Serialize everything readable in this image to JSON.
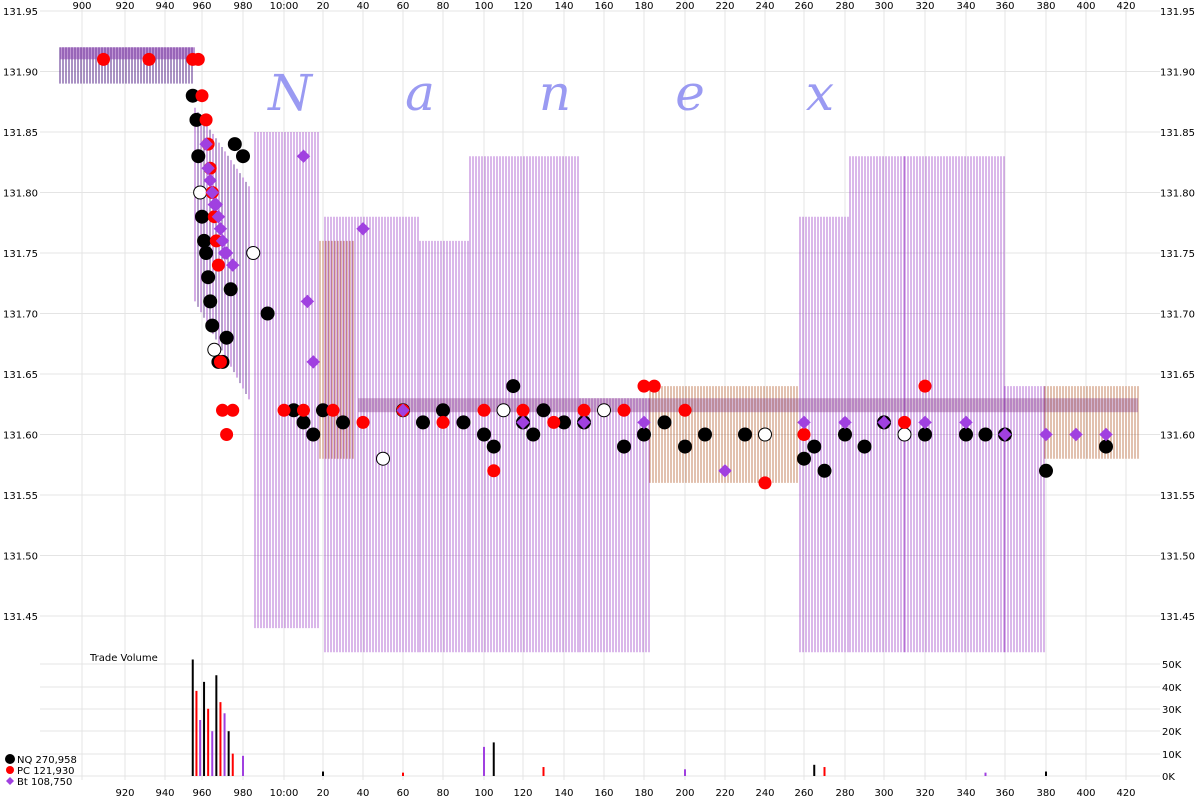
{
  "watermark": [
    "N",
    "a",
    "n",
    "e",
    "x"
  ],
  "colors": {
    "nq": "#000000",
    "pc": "#ff0000",
    "bt": "#a040e0",
    "grid": "#e4e4e4",
    "quote_purple": "#9d3fc8",
    "quote_dark": "#5a2a8a",
    "quote_brown": "#b45a2a"
  },
  "price_axis": {
    "labels": [
      "131.95",
      "131.90",
      "131.85",
      "131.80",
      "131.75",
      "131.70",
      "131.65",
      "131.60",
      "131.55",
      "131.50",
      "131.45"
    ]
  },
  "x_axis": {
    "top_labels": [
      "900",
      "920",
      "940",
      "960",
      "980",
      "10:00",
      "20",
      "40",
      "60",
      "80",
      "100",
      "120",
      "140",
      "160",
      "180",
      "200",
      "220",
      "240",
      "260",
      "280",
      "300",
      "320",
      "340",
      "360",
      "380",
      "400",
      "420"
    ],
    "bottom_labels": [
      "920",
      "940",
      "960",
      "980",
      "10:00",
      "20",
      "40",
      "60",
      "80",
      "100",
      "120",
      "140",
      "160",
      "180",
      "200",
      "220",
      "240",
      "260",
      "280",
      "300",
      "320",
      "340",
      "360",
      "380",
      "400",
      "420"
    ]
  },
  "volume": {
    "title": "Trade Volume",
    "labels": [
      "50K",
      "40K",
      "30K",
      "20K",
      "10K",
      "0K"
    ]
  },
  "legend": [
    {
      "label": "NQ 270,958",
      "color": "#000000"
    },
    {
      "label": "PC 121,930",
      "color": "#ff0000"
    },
    {
      "label": "Bt 108,750",
      "color": "#a040e0"
    }
  ],
  "chart_data": [
    {
      "type": "scatter",
      "title": "",
      "xlabel": "",
      "ylabel": "",
      "x_ticks": [
        "900",
        "920",
        "940",
        "960",
        "980",
        "10:00",
        "20",
        "40",
        "60",
        "80",
        "100",
        "120",
        "140",
        "160",
        "180",
        "200",
        "220",
        "240",
        "260",
        "280",
        "300",
        "320",
        "340",
        "360",
        "380",
        "400",
        "420"
      ],
      "ylim": [
        131.42,
        131.95
      ],
      "grid": true,
      "legend_position": "bottom-left",
      "series": [
        {
          "name": "NQ 270,958",
          "color": "#000000",
          "x": [
            955,
            957,
            958,
            959,
            960,
            961,
            962,
            963,
            964,
            965,
            966,
            968,
            970,
            972,
            974,
            976,
            980,
            985,
            992,
            1005,
            1010,
            1015,
            1020,
            1030,
            1050,
            1060,
            1070,
            1080,
            1090,
            1100,
            1105,
            1110,
            1115,
            1120,
            1125,
            1130,
            1140,
            1150,
            1160,
            1170,
            1180,
            1190,
            1200,
            1210,
            1230,
            1240,
            1260,
            1265,
            1270,
            1280,
            1290,
            1300,
            1310,
            1320,
            1340,
            1350,
            1360,
            1380,
            1410
          ],
          "y": [
            131.88,
            131.86,
            131.83,
            131.8,
            131.78,
            131.76,
            131.75,
            131.73,
            131.71,
            131.69,
            131.67,
            131.66,
            131.66,
            131.68,
            131.72,
            131.84,
            131.83,
            131.75,
            131.7,
            131.62,
            131.61,
            131.6,
            131.62,
            131.61,
            131.58,
            131.62,
            131.61,
            131.62,
            131.61,
            131.6,
            131.59,
            131.62,
            131.64,
            131.61,
            131.6,
            131.62,
            131.61,
            131.61,
            131.62,
            131.59,
            131.6,
            131.61,
            131.59,
            131.6,
            131.6,
            131.6,
            131.58,
            131.59,
            131.57,
            131.6,
            131.59,
            131.61,
            131.6,
            131.6,
            131.6,
            131.6,
            131.6,
            131.57,
            131.59
          ]
        },
        {
          "name": "PC 121,930",
          "color": "#ff0000",
          "x": [
            910,
            932,
            955,
            958,
            960,
            962,
            963,
            964,
            965,
            966,
            967,
            968,
            969,
            970,
            972,
            975,
            1000,
            1010,
            1025,
            1040,
            1060,
            1080,
            1100,
            1105,
            1120,
            1135,
            1150,
            1170,
            1180,
            1185,
            1200,
            1240,
            1260,
            1310,
            1320
          ],
          "y": [
            131.91,
            131.91,
            131.91,
            131.91,
            131.88,
            131.86,
            131.84,
            131.82,
            131.8,
            131.78,
            131.76,
            131.74,
            131.66,
            131.62,
            131.6,
            131.62,
            131.62,
            131.62,
            131.62,
            131.61,
            131.62,
            131.61,
            131.62,
            131.57,
            131.62,
            131.61,
            131.62,
            131.62,
            131.64,
            131.64,
            131.62,
            131.56,
            131.6,
            131.61,
            131.64
          ]
        },
        {
          "name": "Bt 108,750",
          "color": "#a040e0",
          "x": [
            962,
            963,
            964,
            965,
            966,
            967,
            968,
            969,
            970,
            971,
            972,
            975,
            1010,
            1012,
            1015,
            1040,
            1060,
            1120,
            1150,
            1180,
            1220,
            1260,
            1280,
            1300,
            1320,
            1340,
            1360,
            1380,
            1395,
            1410
          ],
          "y": [
            131.84,
            131.82,
            131.81,
            131.8,
            131.79,
            131.79,
            131.78,
            131.77,
            131.76,
            131.75,
            131.75,
            131.74,
            131.83,
            131.71,
            131.66,
            131.77,
            131.62,
            131.61,
            131.61,
            131.61,
            131.57,
            131.61,
            131.61,
            131.61,
            131.61,
            131.61,
            131.6,
            131.6,
            131.6,
            131.6
          ]
        }
      ]
    },
    {
      "type": "bar",
      "title": "Trade Volume",
      "ylabel": "",
      "ylim": [
        0,
        50000
      ],
      "y_ticks": [
        "50K",
        "40K",
        "30K",
        "20K",
        "10K",
        "0K"
      ],
      "x": [
        955,
        957,
        959,
        961,
        963,
        965,
        967,
        969,
        971,
        973,
        975,
        980,
        1020,
        1060,
        1100,
        1105,
        1130,
        1200,
        1265,
        1270,
        1350,
        1380
      ],
      "values": [
        52000,
        38000,
        25000,
        42000,
        30000,
        20000,
        45000,
        33000,
        28000,
        20000,
        10000,
        9000,
        2000,
        1500,
        13000,
        15000,
        4000,
        3000,
        5000,
        4000,
        1500,
        2000
      ]
    }
  ]
}
